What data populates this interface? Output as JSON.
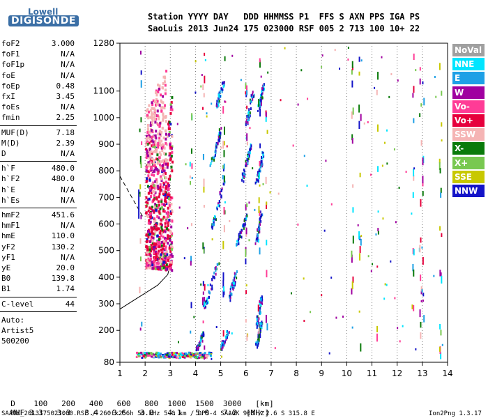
{
  "logo": {
    "top": "Lowell",
    "bottom": "DIGISONDE"
  },
  "header": {
    "line1": "Station YYYY DAY   DDD HHMMSS P1  FFS S AXN PPS IGA PS",
    "line2": "SaoLuis 2013 Jun24 175 023000 RSF 005 2 713 100 10+ 22"
  },
  "params_group1": [
    {
      "name": "foF2",
      "value": "3.000"
    },
    {
      "name": "foF1",
      "value": "N/A"
    },
    {
      "name": "foF1p",
      "value": "N/A"
    },
    {
      "name": "foE",
      "value": "N/A"
    },
    {
      "name": "foEp",
      "value": "0.48"
    },
    {
      "name": "fxI",
      "value": "3.45"
    },
    {
      "name": "foEs",
      "value": "N/A"
    },
    {
      "name": "fmin",
      "value": "2.25"
    }
  ],
  "params_group2": [
    {
      "name": "MUF(D)",
      "value": "7.18"
    },
    {
      "name": "M(D)",
      "value": "2.39"
    },
    {
      "name": "D",
      "value": "N/A"
    }
  ],
  "params_group3": [
    {
      "name": "h`F",
      "value": "480.0"
    },
    {
      "name": "h`F2",
      "value": "480.0"
    },
    {
      "name": "h`E",
      "value": "N/A"
    },
    {
      "name": "h`Es",
      "value": "N/A"
    }
  ],
  "params_group4": [
    {
      "name": "hmF2",
      "value": "451.6"
    },
    {
      "name": "hmF1",
      "value": "N/A"
    },
    {
      "name": "hmE",
      "value": "110.0"
    },
    {
      "name": "yF2",
      "value": "130.2"
    },
    {
      "name": "yF1",
      "value": "N/A"
    },
    {
      "name": "yE",
      "value": "20.0"
    },
    {
      "name": "B0",
      "value": "139.8"
    },
    {
      "name": "B1",
      "value": "1.74"
    }
  ],
  "params_group5": [
    {
      "name": "C-level",
      "value": "44"
    }
  ],
  "autoscale": {
    "line1": "Auto:",
    "line2": "Artist5",
    "line3": "500200"
  },
  "legend": [
    {
      "label": "NoVal",
      "color": "#a0a0a0"
    },
    {
      "label": "NNE",
      "color": "#00e5ff"
    },
    {
      "label": "E",
      "color": "#1ea0e6"
    },
    {
      "label": "W",
      "color": "#a000a0"
    },
    {
      "label": "Vo-",
      "color": "#ff3c96"
    },
    {
      "label": "Vo+",
      "color": "#e6003c"
    },
    {
      "label": "SSW",
      "color": "#f5b4b4"
    },
    {
      "label": "X-",
      "color": "#0a7a0a"
    },
    {
      "label": "X+",
      "color": "#78c850"
    },
    {
      "label": "SSE",
      "color": "#c8c800"
    },
    {
      "label": "NNW",
      "color": "#1414c8"
    }
  ],
  "muf_table": {
    "d_label": "D",
    "d_values": [
      "100",
      "200",
      "400",
      "600",
      "800",
      "1000",
      "1500",
      "3000",
      "[km]"
    ],
    "muf_label": "MUF",
    "muf_values": [
      "3.3",
      "3.3",
      "3.4",
      "3.6",
      "3.8",
      "4.1",
      "5.0",
      "7.2",
      "[MHz]"
    ]
  },
  "footer": {
    "left": "SAA0K_2013175023000.RSF / 260fx256h 50 kHz 5.0 km / DPS-4 SAA0K 903 / 2.6 S 315.8 E",
    "right": "Ion2Png 1.3.17"
  },
  "chart_data": {
    "type": "scatter",
    "xlim": [
      1,
      14
    ],
    "ylim": [
      80,
      1280
    ],
    "x_ticks": [
      1,
      2,
      3,
      4,
      5,
      6,
      7,
      8,
      9,
      10,
      11,
      12,
      13,
      14
    ],
    "y_ticks": [
      80,
      200,
      300,
      400,
      500,
      600,
      700,
      800,
      900,
      1000,
      1100,
      1280
    ],
    "grid": "dotted vertical at integer MHz",
    "traces": [
      {
        "name": "o-trace F2",
        "x": [
          2.25,
          2.5,
          2.8,
          3.0
        ],
        "y": [
          480,
          480,
          500,
          540
        ]
      },
      {
        "name": "multihop 2F",
        "x": [
          4.6,
          5.0,
          5.5
        ],
        "y": [
          960,
          1000,
          1100
        ]
      },
      {
        "name": "Es layer",
        "x": [
          1.6,
          2.0,
          2.5,
          3.0,
          3.5,
          4.0,
          4.5
        ],
        "y": [
          108,
          108,
          108,
          108,
          108,
          108,
          108
        ]
      }
    ],
    "profile_curve": {
      "x": [
        1.0,
        1.5,
        2.0,
        2.5,
        2.9,
        3.0
      ],
      "y": [
        280,
        310,
        340,
        370,
        410,
        450
      ]
    }
  }
}
